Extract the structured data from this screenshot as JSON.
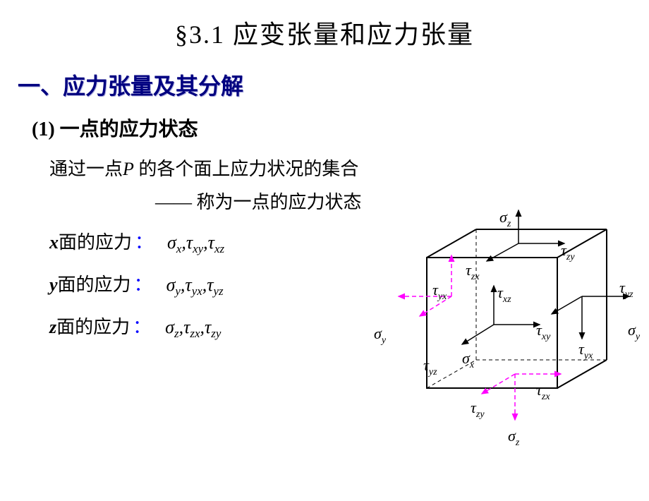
{
  "title": "§3.1 应变张量和应力张量",
  "section_heading": "一、应力张量及其分解",
  "subheading": "(1) 一点的应力状态",
  "intro_line1_pre": "通过一点",
  "intro_line1_P": "P",
  "intro_line1_post": " 的各个面上应力状况的集合",
  "intro_line2": "—— 称为一点的应力状态",
  "rows": [
    {
      "var": "x",
      "label_cn": "面的应力",
      "sigma": "σ",
      "sigma_sub": "x",
      "t1": "τ",
      "t1_sub": "xy",
      "t2": "τ",
      "t2_sub": "xz"
    },
    {
      "var": "y",
      "label_cn": "面的应力",
      "sigma": "σ",
      "sigma_sub": "y",
      "t1": "τ",
      "t1_sub": "yx",
      "t2": "τ",
      "t2_sub": "yz"
    },
    {
      "var": "z",
      "label_cn": "面的应力",
      "sigma": "σ",
      "sigma_sub": "z",
      "t1": "τ",
      "t1_sub": "zx",
      "t2": "τ",
      "t2_sub": "zy"
    }
  ],
  "diagram": {
    "cube_stroke": "#000000",
    "cube_dash_stroke": "#000000",
    "magenta": "#ff00ff",
    "labels": {
      "sigma_z_top": "σ",
      "sigma_z_top_sub": "z",
      "tau_zy": "τ",
      "tau_zy_sub": "zy",
      "tau_zx": "τ",
      "tau_zx_sub": "zx",
      "tau_yx_l": "τ",
      "tau_yx_l_sub": "yx",
      "tau_xz": "τ",
      "tau_xz_sub": "xz",
      "tau_yz_r": "τ",
      "tau_yz_r_sub": "yz",
      "tau_xy": "τ",
      "tau_xy_sub": "xy",
      "sigma_y_l": "σ",
      "sigma_y_l_sub": "y",
      "sigma_y_r": "σ",
      "sigma_y_r_sub": "y",
      "tau_yx_r": "τ",
      "tau_yx_r_sub": "yx",
      "tau_yz_l": "τ",
      "tau_yz_l_sub": "yz",
      "sigma_x": "σ",
      "sigma_x_sub": "x",
      "tau_zy_b": "τ",
      "tau_zy_b_sub": "zy",
      "tau_zx_b": "τ",
      "tau_zx_b_sub": "zx",
      "sigma_z_bot": "σ",
      "sigma_z_bot_sub": "z"
    }
  }
}
